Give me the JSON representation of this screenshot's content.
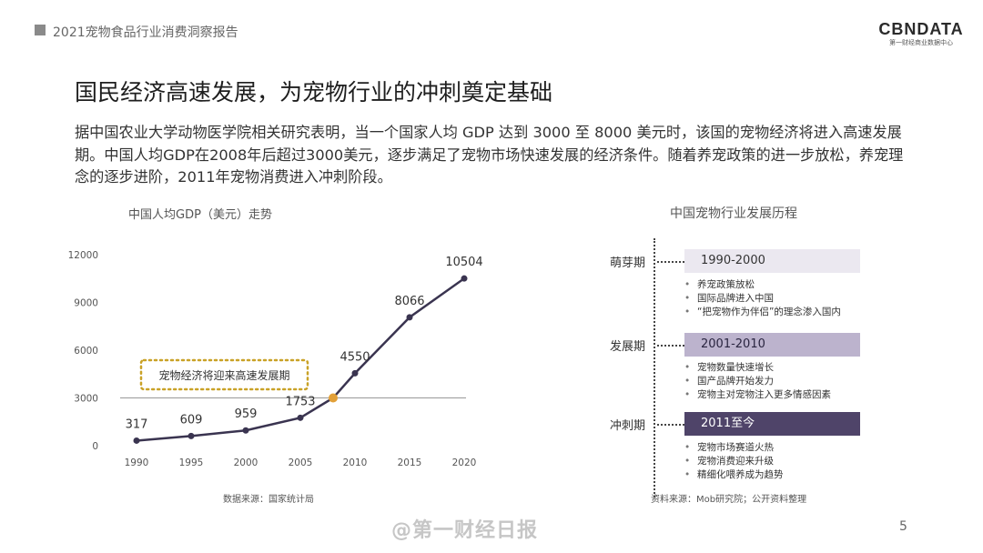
{
  "header": {
    "report_title": "2021宠物食品行业消费洞察报告",
    "logo_main": "CBNDATA",
    "logo_sub": "第一财经商业数据中心"
  },
  "slide": {
    "title": "国民经济高速发展，为宠物行业的冲刺奠定基础",
    "body": "据中国农业大学动物医学院相关研究表明，当一个国家人均 GDP 达到 3000 至 8000 美元时，该国的宠物经济将进入高速发展期。中国人均GDP在2008年后超过3000美元，逐步满足了宠物市场快速发展的经济条件。随着养宠政策的进一步放松，养宠理念的逐步进阶，2011年宠物消费进入冲刺阶段。",
    "page_number": "5",
    "watermark": "@第一财经日报"
  },
  "chart_data": {
    "type": "line",
    "title": "中国人均GDP（美元）走势",
    "x": [
      "1990",
      "1995",
      "2000",
      "2005",
      "2010",
      "2015",
      "2020"
    ],
    "series": [
      {
        "values": [
          317,
          609,
          959,
          1753,
          4550,
          8066,
          10504
        ]
      }
    ],
    "value_labels": [
      "317",
      "609",
      "959",
      "1753",
      "4550",
      "8066",
      "10504"
    ],
    "highlight_point": {
      "x": 2008,
      "y": 3000
    },
    "threshold": 3000,
    "yticks": [
      "0",
      "3000",
      "6000",
      "9000",
      "12000"
    ],
    "ylim": [
      0,
      12000
    ],
    "annotation": "宠物经济将迎来高速发展期",
    "source": "数据来源：国家统计局",
    "colors": {
      "line": "#3a3450",
      "highlight": "#e2a038",
      "threshold": "#999999",
      "annotation_border": "#c9a227"
    }
  },
  "timeline": {
    "title": "中国宠物行业发展历程",
    "stages": [
      {
        "name": "萌芽期",
        "period": "1990-2000",
        "pill_color": "#ebe8f0",
        "text_color": "#333333",
        "items": [
          "养宠政策放松",
          "国际品牌进入中国",
          "“把宠物作为伴侣”的理念渗入国内"
        ]
      },
      {
        "name": "发展期",
        "period": "2001-2010",
        "pill_color": "#bcb3cd",
        "text_color": "#2a2540",
        "items": [
          "宠物数量快速增长",
          "国产品牌开始发力",
          "宠物主对宠物注入更多情感因素"
        ]
      },
      {
        "name": "冲刺期",
        "period": "2011至今",
        "pill_color": "#4f4469",
        "text_color": "#ffffff",
        "items": [
          "宠物市场赛道火热",
          "宠物消费迎来升级",
          "精细化喂养成为趋势"
        ]
      }
    ],
    "source": "资料来源：Mob研究院；公开资料整理"
  }
}
